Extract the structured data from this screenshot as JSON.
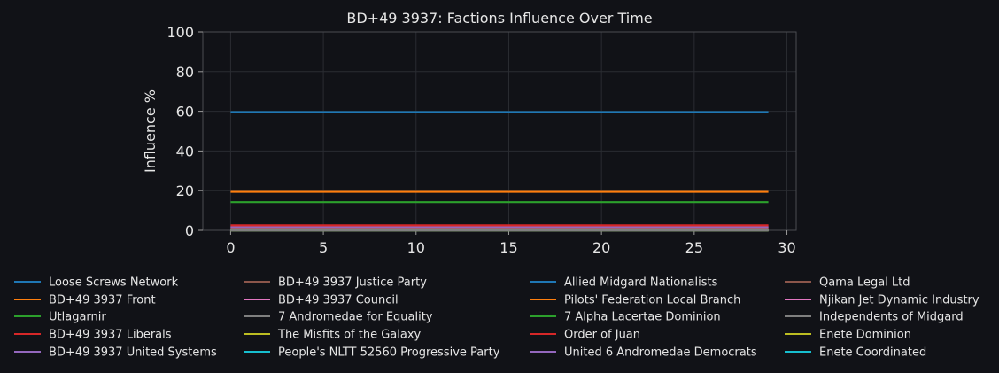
{
  "chart_data": {
    "type": "line",
    "title": "BD+49 3937: Factions Influence Over Time",
    "xlabel": "",
    "ylabel": "Influence %",
    "xlim": [
      -1.5,
      30.5
    ],
    "ylim": [
      0,
      100
    ],
    "x_ticks": [
      0,
      5,
      10,
      15,
      20,
      25,
      30
    ],
    "y_ticks": [
      0,
      20,
      40,
      60,
      80,
      100
    ],
    "grid": true,
    "legend_position": "bottom",
    "legend_columns": 4,
    "x": [
      0,
      29
    ],
    "series": [
      {
        "name": "Loose Screws Network",
        "color": "#1f77b4",
        "values": [
          59.6,
          59.6
        ]
      },
      {
        "name": "BD+49 3937 Front",
        "color": "#ff7f0e",
        "values": [
          19.4,
          19.4
        ]
      },
      {
        "name": "Utlagarnir",
        "color": "#2ca02c",
        "values": [
          14.2,
          14.2
        ]
      },
      {
        "name": "BD+49 3937 Liberals",
        "color": "#d62728",
        "values": [
          2.5,
          2.5
        ]
      },
      {
        "name": "BD+49 3937 United Systems",
        "color": "#9467bd",
        "values": [
          1.8,
          1.8
        ]
      },
      {
        "name": "BD+49 3937 Justice Party",
        "color": "#8c564b",
        "values": [
          1.5,
          1.5
        ]
      },
      {
        "name": "BD+49 3937 Council",
        "color": "#e377c2",
        "values": [
          1.2,
          1.2
        ]
      },
      {
        "name": "7 Andromedae for Equality",
        "color": "#7f7f7f",
        "values": [
          0,
          0
        ]
      },
      {
        "name": "The Misfits of the Galaxy",
        "color": "#bcbd22",
        "values": [
          0,
          0
        ]
      },
      {
        "name": "People's NLTT 52560 Progressive Party",
        "color": "#17becf",
        "values": [
          0,
          0
        ]
      },
      {
        "name": "Allied Midgard Nationalists",
        "color": "#1f77b4",
        "values": [
          0,
          0
        ]
      },
      {
        "name": "Pilots' Federation Local Branch",
        "color": "#ff7f0e",
        "values": [
          0,
          0
        ]
      },
      {
        "name": "7 Alpha Lacertae Dominion",
        "color": "#2ca02c",
        "values": [
          0,
          0
        ]
      },
      {
        "name": "Order of Juan",
        "color": "#d62728",
        "values": [
          0,
          0
        ]
      },
      {
        "name": "United 6 Andromedae Democrats",
        "color": "#9467bd",
        "values": [
          0,
          0
        ]
      },
      {
        "name": "Qama Legal Ltd",
        "color": "#8c564b",
        "values": [
          0,
          0
        ]
      },
      {
        "name": "Njikan Jet Dynamic Industry",
        "color": "#e377c2",
        "values": [
          0,
          0
        ]
      },
      {
        "name": "Independents of Midgard",
        "color": "#7f7f7f",
        "values": [
          0,
          0
        ]
      },
      {
        "name": "Enete Dominion",
        "color": "#bcbd22",
        "values": [
          0,
          0
        ]
      },
      {
        "name": "Enete Coordinated",
        "color": "#17becf",
        "values": [
          0,
          0
        ]
      }
    ]
  }
}
